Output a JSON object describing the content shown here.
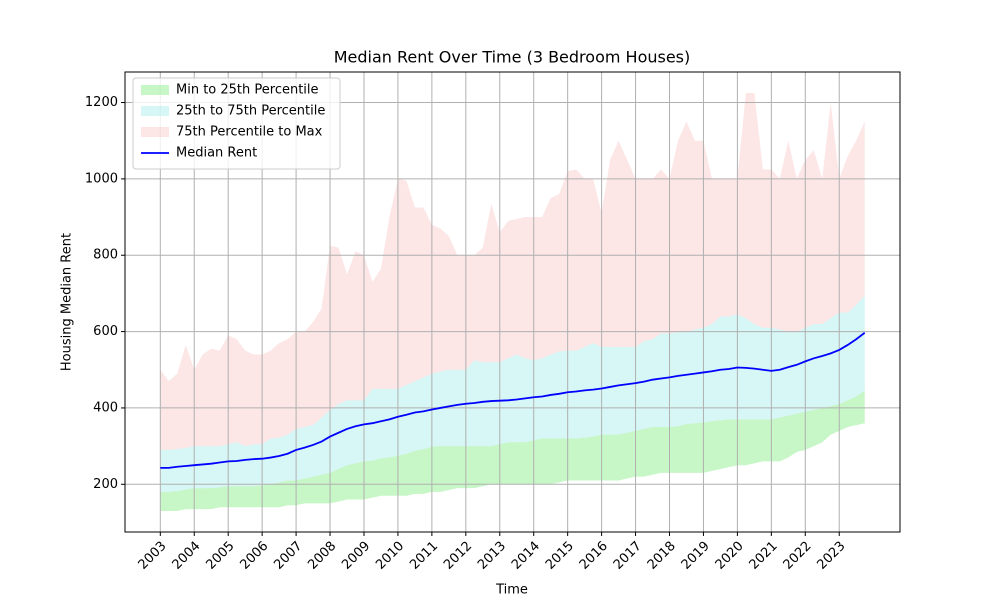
{
  "chart_data": {
    "type": "band",
    "title": "Median Rent Over Time (3 Bedroom Houses)",
    "xlabel": "Time",
    "ylabel": "Housing Median Rent",
    "x": [
      2003,
      2003.25,
      2003.5,
      2003.75,
      2004,
      2004.25,
      2004.5,
      2004.75,
      2005,
      2005.25,
      2005.5,
      2005.75,
      2006,
      2006.25,
      2006.5,
      2006.75,
      2007,
      2007.25,
      2007.5,
      2007.75,
      2008,
      2008.25,
      2008.5,
      2008.75,
      2009,
      2009.25,
      2009.5,
      2009.75,
      2010,
      2010.25,
      2010.5,
      2010.75,
      2011,
      2011.25,
      2011.5,
      2011.75,
      2012,
      2012.25,
      2012.5,
      2012.75,
      2013,
      2013.25,
      2013.5,
      2013.75,
      2014,
      2014.25,
      2014.5,
      2014.75,
      2015,
      2015.25,
      2015.5,
      2015.75,
      2016,
      2016.25,
      2016.5,
      2016.75,
      2017,
      2017.25,
      2017.5,
      2017.75,
      2018,
      2018.25,
      2018.5,
      2018.75,
      2019,
      2019.25,
      2019.5,
      2019.75,
      2020,
      2020.25,
      2020.5,
      2020.75,
      2021,
      2021.25,
      2021.5,
      2021.75,
      2022,
      2022.25,
      2022.5,
      2022.75,
      2023,
      2023.25,
      2023.5,
      2023.75
    ],
    "xlim": [
      2001.96,
      2024.79
    ],
    "xticks": [
      2003,
      2004,
      2005,
      2006,
      2007,
      2008,
      2009,
      2010,
      2011,
      2012,
      2013,
      2014,
      2015,
      2016,
      2017,
      2018,
      2019,
      2020,
      2021,
      2022,
      2023
    ],
    "ylim": [
      75,
      1280
    ],
    "yticks": [
      200,
      400,
      600,
      800,
      1000,
      1200
    ],
    "grid": true,
    "legend": "upper left",
    "bands": [
      {
        "name": "Min to 25th Percentile",
        "color": "#90ee90",
        "opacity": 0.5,
        "lower": [
          130,
          130,
          130,
          135,
          135,
          135,
          135,
          140,
          140,
          140,
          140,
          140,
          140,
          140,
          140,
          145,
          145,
          150,
          150,
          150,
          150,
          155,
          160,
          160,
          160,
          165,
          170,
          170,
          170,
          170,
          175,
          175,
          180,
          180,
          185,
          190,
          190,
          190,
          195,
          200,
          200,
          200,
          200,
          200,
          200,
          200,
          200,
          205,
          210,
          210,
          210,
          210,
          210,
          210,
          210,
          215,
          220,
          220,
          225,
          230,
          230,
          230,
          230,
          230,
          230,
          235,
          240,
          245,
          250,
          250,
          255,
          260,
          260,
          260,
          270,
          285,
          290,
          300,
          310,
          330,
          340,
          350,
          355,
          360
        ],
        "upper": [
          180,
          180,
          182,
          186,
          190,
          190,
          190,
          192,
          195,
          195,
          195,
          195,
          197,
          200,
          205,
          210,
          210,
          215,
          220,
          225,
          230,
          240,
          250,
          255,
          260,
          262,
          268,
          270,
          275,
          280,
          288,
          292,
          298,
          300,
          300,
          300,
          300,
          300,
          300,
          300,
          305,
          310,
          310,
          310,
          315,
          320,
          320,
          320,
          320,
          320,
          322,
          325,
          330,
          330,
          330,
          335,
          340,
          345,
          350,
          350,
          350,
          352,
          358,
          360,
          362,
          365,
          368,
          370,
          370,
          370,
          370,
          370,
          370,
          375,
          380,
          385,
          390,
          395,
          400,
          405,
          410,
          420,
          430,
          445
        ]
      },
      {
        "name": "25th to 75th Percentile",
        "color": "#afeeee",
        "opacity": 0.5,
        "lower": [
          180,
          180,
          182,
          186,
          190,
          190,
          190,
          192,
          195,
          195,
          195,
          195,
          197,
          200,
          205,
          210,
          210,
          215,
          220,
          225,
          230,
          240,
          250,
          255,
          260,
          262,
          268,
          270,
          275,
          280,
          288,
          292,
          298,
          300,
          300,
          300,
          300,
          300,
          300,
          300,
          305,
          310,
          310,
          310,
          315,
          320,
          320,
          320,
          320,
          320,
          322,
          325,
          330,
          330,
          330,
          335,
          340,
          345,
          350,
          350,
          350,
          352,
          358,
          360,
          362,
          365,
          368,
          370,
          370,
          370,
          370,
          370,
          370,
          375,
          380,
          385,
          390,
          395,
          400,
          405,
          410,
          420,
          430,
          445
        ],
        "upper": [
          290,
          290,
          292,
          295,
          300,
          300,
          300,
          300,
          305,
          310,
          300,
          305,
          305,
          320,
          322,
          330,
          345,
          350,
          355,
          375,
          395,
          410,
          420,
          420,
          420,
          450,
          450,
          450,
          450,
          460,
          470,
          480,
          490,
          495,
          500,
          500,
          500,
          525,
          520,
          520,
          520,
          530,
          540,
          530,
          525,
          530,
          540,
          548,
          550,
          550,
          560,
          570,
          560,
          560,
          560,
          560,
          560,
          575,
          580,
          595,
          595,
          598,
          600,
          605,
          610,
          620,
          640,
          640,
          645,
          635,
          620,
          610,
          610,
          605,
          600,
          600,
          610,
          620,
          620,
          635,
          650,
          650,
          670,
          695
        ]
      },
      {
        "name": "75th Percentile to Max",
        "color": "#f08080",
        "opacity": 0.2,
        "lower": [
          290,
          290,
          292,
          295,
          300,
          300,
          300,
          300,
          305,
          310,
          300,
          305,
          305,
          320,
          322,
          330,
          345,
          350,
          355,
          375,
          395,
          410,
          420,
          420,
          420,
          450,
          450,
          450,
          450,
          460,
          470,
          480,
          490,
          495,
          500,
          500,
          500,
          525,
          520,
          520,
          520,
          530,
          540,
          530,
          525,
          530,
          540,
          548,
          550,
          550,
          560,
          570,
          560,
          560,
          560,
          560,
          560,
          575,
          580,
          595,
          595,
          598,
          600,
          605,
          610,
          620,
          640,
          640,
          645,
          635,
          620,
          610,
          610,
          605,
          600,
          600,
          610,
          620,
          620,
          635,
          650,
          650,
          670,
          695
        ],
        "upper": [
          500,
          470,
          490,
          565,
          500,
          540,
          555,
          550,
          590,
          580,
          550,
          540,
          540,
          550,
          570,
          580,
          600,
          600,
          625,
          660,
          825,
          820,
          750,
          810,
          800,
          730,
          765,
          900,
          1000,
          995,
          925,
          925,
          880,
          870,
          850,
          800,
          800,
          800,
          820,
          935,
          860,
          890,
          895,
          900,
          900,
          900,
          950,
          960,
          1020,
          1025,
          1000,
          1000,
          910,
          1050,
          1100,
          1050,
          1000,
          1000,
          1000,
          1025,
          1000,
          1100,
          1150,
          1100,
          1100,
          1000,
          1000,
          1000,
          1000,
          1225,
          1225,
          1025,
          1025,
          1000,
          1100,
          1000,
          1050,
          1075,
          1000,
          1200,
          1000,
          1060,
          1100,
          1150
        ]
      }
    ],
    "series": [
      {
        "name": "Median Rent",
        "color": "#0000ff",
        "values": [
          243,
          243,
          246,
          248,
          250,
          252,
          254,
          257,
          260,
          261,
          264,
          266,
          267,
          270,
          274,
          280,
          290,
          296,
          303,
          312,
          325,
          335,
          345,
          352,
          357,
          360,
          365,
          370,
          377,
          382,
          388,
          391,
          396,
          400,
          404,
          408,
          411,
          413,
          416,
          418,
          419,
          420,
          422,
          425,
          428,
          430,
          434,
          437,
          441,
          443,
          446,
          448,
          451,
          455,
          459,
          462,
          465,
          469,
          474,
          477,
          480,
          484,
          487,
          490,
          493,
          496,
          500,
          502,
          506,
          505,
          503,
          500,
          497,
          500,
          507,
          513,
          522,
          530,
          536,
          543,
          552,
          565,
          580,
          597
        ]
      }
    ]
  }
}
